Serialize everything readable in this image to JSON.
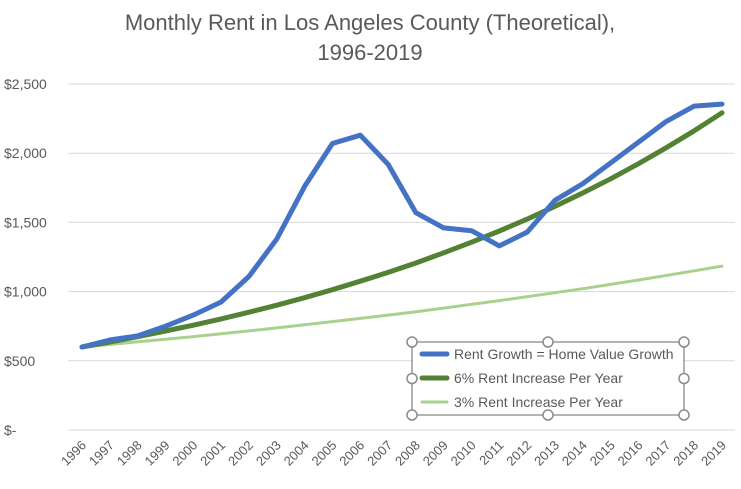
{
  "chart_data": {
    "type": "line",
    "title": [
      "Monthly Rent in Los Angeles County (Theoretical),",
      "1996-2019"
    ],
    "xlabel": "",
    "ylabel": "",
    "ylim": [
      0,
      2500
    ],
    "yticks": [
      0,
      500,
      1000,
      1500,
      2000,
      2500
    ],
    "ytick_labels": [
      "$-",
      "$500",
      "$1,000",
      "$1,500",
      "$2,000",
      "$2,500"
    ],
    "grid": true,
    "legend_position": "bottom-right (inside plot)",
    "legend_selected": true,
    "x": [
      "1996",
      "1997",
      "1998",
      "1999",
      "2000",
      "2001",
      "2002",
      "2003",
      "2004",
      "2005",
      "2006",
      "2007",
      "2008",
      "2009",
      "2010",
      "2011",
      "2012",
      "2013",
      "2014",
      "2015",
      "2016",
      "2017",
      "2018",
      "2019"
    ],
    "series": [
      {
        "name": "Rent Growth = Home Value Growth",
        "color": "#4472C4",
        "width": "thick",
        "values": [
          600,
          650,
          680,
          750,
          830,
          925,
          1110,
          1380,
          1760,
          2070,
          2130,
          1920,
          1570,
          1460,
          1440,
          1330,
          1430,
          1660,
          1780,
          1930,
          2080,
          2230,
          2340,
          2355
        ]
      },
      {
        "name": "6% Rent Increase Per Year",
        "color": "#548235",
        "width": "thick",
        "values": [
          600,
          636,
          674,
          715,
          757,
          803,
          851,
          902,
          956,
          1014,
          1075,
          1139,
          1207,
          1280,
          1357,
          1438,
          1524,
          1616,
          1713,
          1815,
          1924,
          2040,
          2162,
          2292
        ]
      },
      {
        "name": "3% Rent Increase Per Year",
        "color": "#A9D18E",
        "width": "thin",
        "values": [
          600,
          618,
          637,
          656,
          675,
          696,
          716,
          738,
          760,
          783,
          806,
          830,
          855,
          881,
          908,
          935,
          963,
          992,
          1021,
          1052,
          1084,
          1116,
          1150,
          1184
        ]
      }
    ]
  }
}
